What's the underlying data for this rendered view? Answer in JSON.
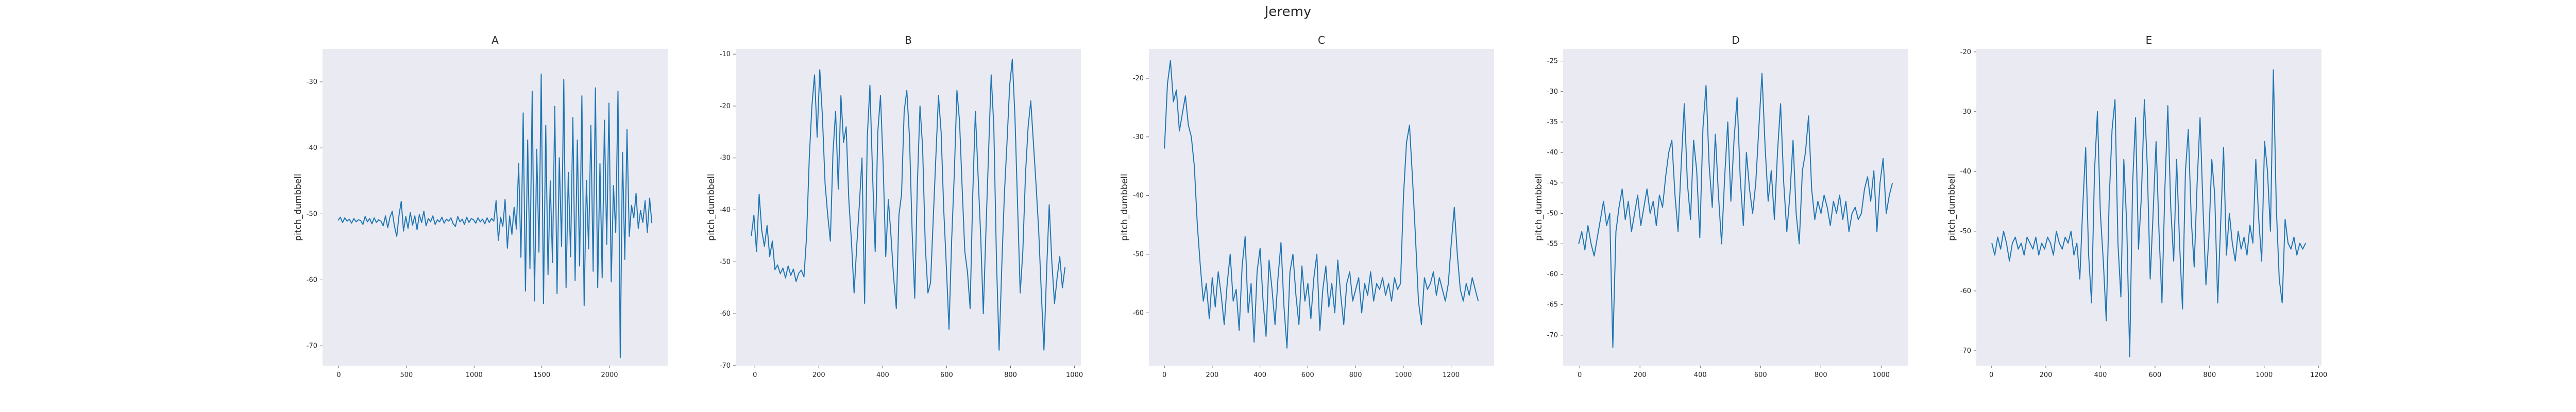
{
  "figure": {
    "title": "Jeremy"
  },
  "style": {
    "line_color": "#1f77b4",
    "axes_background": "#eaeaf2",
    "text_color": "#262626"
  },
  "chart_data": [
    {
      "type": "line",
      "title": "A",
      "xlabel": "",
      "ylabel": "pitch_dumbbell",
      "xlim": [
        -120,
        2430
      ],
      "ylim": [
        -73,
        -25
      ],
      "xticks": [
        0,
        500,
        1000,
        1500,
        2000
      ],
      "yticks": [
        -30,
        -40,
        -50,
        -60,
        -70
      ],
      "grid": false,
      "series": [
        {
          "values": [
            -51,
            -50.5,
            -51.3,
            -50.6,
            -51.1,
            -50.8,
            -51.4,
            -50.7,
            -51.2,
            -50.9,
            -51,
            -51.6,
            -50.4,
            -51.2,
            -50.7,
            -51.5,
            -50.6,
            -51.3,
            -50.9,
            -51.1,
            -51.8,
            -50.3,
            -52.1,
            -50.5,
            -49.6,
            -51.9,
            -53.4,
            -50.2,
            -48.1,
            -52.6,
            -50.4,
            -52.2,
            -49.8,
            -51.7,
            -50.3,
            -52.4,
            -50.1,
            -51.3,
            -49.6,
            -51.8,
            -50.7,
            -51.2,
            -50.3,
            -51.6,
            -50.9,
            -51.2,
            -50.5,
            -51.4,
            -50.8,
            -51.1,
            -50.6,
            -51.5,
            -51.9,
            -50.4,
            -51.2,
            -50.8,
            -51.6,
            -50.5,
            -51.3,
            -50.7,
            -50.9,
            -51.4,
            -50.6,
            -51.2,
            -50.8,
            -51.5,
            -50.6,
            -51.3,
            -50.7,
            -51.1,
            -48,
            -54,
            -50.5,
            -51.9,
            -47.8,
            -55.2,
            -50.3,
            -53.1,
            -49,
            -52.3,
            -42.4,
            -56.6,
            -34.7,
            -61.7,
            -38.8,
            -58.3,
            -31.4,
            -63.2,
            -40.2,
            -55.8,
            -28.8,
            -63.6,
            -36.6,
            -59.2,
            -45,
            -57.4,
            -33.7,
            -62.1,
            -41.5,
            -54.9,
            -29.6,
            -61.2,
            -43.7,
            -56.5,
            -35.4,
            -60.1,
            -38.8,
            -57.9,
            -32.1,
            -63.9,
            -44.9,
            -55.3,
            -36.6,
            -58.7,
            -30.9,
            -61.2,
            -42.4,
            -59.7,
            -35.8,
            -54.6,
            -33.2,
            -60.3,
            -45.7,
            -52.8,
            -31.4,
            -71.8,
            -40.7,
            -56.9,
            -37.2,
            -53.4,
            -48.7,
            -50.6,
            -46.9,
            -52.2,
            -49.5,
            -51.3,
            -48,
            -52.8,
            -47.6,
            -51.4
          ]
        }
      ]
    },
    {
      "type": "line",
      "title": "B",
      "xlabel": "",
      "ylabel": "pitch_dumbbell",
      "xlim": [
        -60,
        1020
      ],
      "ylim": [
        -70,
        -9
      ],
      "xticks": [
        0,
        200,
        400,
        600,
        800,
        1000
      ],
      "yticks": [
        -10,
        -20,
        -30,
        -40,
        -50,
        -60,
        -70
      ],
      "grid": false,
      "series": [
        {
          "values": [
            -45,
            -41,
            -48,
            -37,
            -44,
            -47,
            -43,
            -49,
            -46,
            -51.5,
            -50.6,
            -52.3,
            -51.2,
            -53.1,
            -50.8,
            -52.6,
            -51.4,
            -53.8,
            -52.2,
            -51.6,
            -52.9,
            -45,
            -30,
            -20,
            -14,
            -26,
            -13,
            -22,
            -35,
            -41,
            -46,
            -29,
            -21,
            -36,
            -18,
            -27,
            -24,
            -38,
            -46,
            -56,
            -47,
            -39,
            -30,
            -58,
            -26,
            -16,
            -33,
            -48,
            -25,
            -18,
            -31,
            -49,
            -38,
            -45,
            -53,
            -59,
            -41,
            -37,
            -21,
            -17,
            -26,
            -44,
            -57,
            -35,
            -20,
            -28,
            -47,
            -56,
            -54,
            -42,
            -30,
            -18,
            -25,
            -40,
            -51,
            -63,
            -46,
            -33,
            -17,
            -23,
            -36,
            -48,
            -52,
            -59,
            -37,
            -21,
            -33,
            -45,
            -60,
            -44,
            -29,
            -14,
            -24,
            -50,
            -67,
            -51,
            -37,
            -27,
            -16,
            -11,
            -22,
            -39,
            -56,
            -48,
            -33,
            -24,
            -19,
            -27,
            -35,
            -44,
            -56,
            -67,
            -52,
            -39,
            -50,
            -58,
            -53,
            -49,
            -55,
            -51
          ]
        }
      ]
    },
    {
      "type": "line",
      "title": "C",
      "xlabel": "",
      "ylabel": "pitch_dumbbell",
      "xlim": [
        -65,
        1380
      ],
      "ylim": [
        -69,
        -15
      ],
      "xticks": [
        0,
        200,
        400,
        600,
        800,
        1000,
        1200
      ],
      "yticks": [
        -20,
        -30,
        -40,
        -50,
        -60
      ],
      "grid": false,
      "series": [
        {
          "values": [
            -32,
            -21,
            -17,
            -24,
            -22,
            -29,
            -26,
            -23,
            -28,
            -30,
            -35,
            -45,
            -52,
            -58,
            -55,
            -61,
            -54,
            -59,
            -53,
            -57,
            -62,
            -55,
            -50,
            -58,
            -56,
            -63,
            -52,
            -47,
            -60,
            -55,
            -65,
            -53,
            -49,
            -58,
            -64,
            -51,
            -56,
            -62,
            -54,
            -48,
            -59,
            -66,
            -53,
            -50,
            -57,
            -62,
            -52,
            -58,
            -55,
            -61,
            -54,
            -50,
            -63,
            -56,
            -52,
            -59,
            -55,
            -60,
            -51,
            -57,
            -62,
            -55,
            -53,
            -58,
            -56,
            -54,
            -60,
            -55,
            -57,
            -53,
            -58,
            -55,
            -56,
            -54,
            -57,
            -55,
            -58,
            -54,
            -56,
            -55,
            -40,
            -31,
            -28,
            -37,
            -47,
            -58,
            -62,
            -54,
            -56,
            -55,
            -53,
            -57,
            -54,
            -56,
            -58,
            -55,
            -48,
            -42,
            -50,
            -56,
            -58,
            -55,
            -57,
            -54,
            -56,
            -58
          ]
        }
      ]
    },
    {
      "type": "line",
      "title": "D",
      "xlabel": "",
      "ylabel": "pitch_dumbbell",
      "xlim": [
        -55,
        1090
      ],
      "ylim": [
        -75,
        -23
      ],
      "xticks": [
        0,
        200,
        400,
        600,
        800,
        1000
      ],
      "yticks": [
        -25,
        -30,
        -35,
        -40,
        -45,
        -50,
        -55,
        -60,
        -65,
        -70
      ],
      "grid": false,
      "series": [
        {
          "values": [
            -55,
            -53,
            -56,
            -52,
            -55,
            -57,
            -54,
            -51,
            -48,
            -52,
            -50,
            -72,
            -53,
            -49,
            -46,
            -51,
            -48,
            -53,
            -50,
            -47,
            -52,
            -49,
            -46,
            -50,
            -48,
            -52,
            -47,
            -49,
            -44,
            -40,
            -38,
            -47,
            -53,
            -42,
            -32,
            -45,
            -51,
            -38,
            -43,
            -54,
            -36,
            -29,
            -42,
            -49,
            -37,
            -47,
            -55,
            -44,
            -35,
            -48,
            -38,
            -31,
            -44,
            -52,
            -40,
            -46,
            -50,
            -45,
            -36,
            -27,
            -39,
            -48,
            -43,
            -51,
            -40,
            -32,
            -45,
            -53,
            -47,
            -38,
            -50,
            -55,
            -43,
            -40,
            -34,
            -46,
            -51,
            -48,
            -50,
            -47,
            -49,
            -52,
            -48,
            -50,
            -47,
            -51,
            -48,
            -53,
            -50,
            -49,
            -51,
            -50,
            -46,
            -44,
            -48,
            -43,
            -53,
            -45,
            -41,
            -50,
            -47,
            -45
          ]
        }
      ]
    },
    {
      "type": "line",
      "title": "E",
      "xlabel": "",
      "ylabel": "pitch_dumbbell",
      "xlim": [
        -55,
        1210
      ],
      "ylim": [
        -72.5,
        -19.5
      ],
      "xticks": [
        0,
        200,
        400,
        600,
        800,
        1000,
        1200
      ],
      "yticks": [
        -20,
        -30,
        -40,
        -50,
        -60,
        -70
      ],
      "grid": false,
      "series": [
        {
          "values": [
            -52,
            -54,
            -51,
            -53,
            -50,
            -52,
            -55,
            -52,
            -51,
            -53,
            -52,
            -54,
            -51,
            -52,
            -53,
            -51,
            -54,
            -52,
            -53,
            -51,
            -52,
            -54,
            -50,
            -52,
            -53,
            -51,
            -52,
            -50,
            -54,
            -52,
            -58,
            -46,
            -36,
            -54,
            -62,
            -40,
            -30,
            -47,
            -55,
            -65,
            -45,
            -33,
            -28,
            -52,
            -61,
            -38,
            -49,
            -71,
            -42,
            -31,
            -53,
            -44,
            -28,
            -39,
            -58,
            -47,
            -35,
            -50,
            -62,
            -43,
            -29,
            -46,
            -55,
            -38,
            -52,
            -63,
            -40,
            -33,
            -48,
            -56,
            -42,
            -31,
            -46,
            -59,
            -51,
            -38,
            -44,
            -62,
            -49,
            -36,
            -54,
            -47,
            -52,
            -55,
            -50,
            -53,
            -51,
            -54,
            -49,
            -52,
            -38,
            -48,
            -55,
            -35,
            -40,
            -50,
            -23,
            -46,
            -58,
            -62,
            -48,
            -52,
            -53,
            -51,
            -54,
            -52,
            -53,
            -52
          ]
        }
      ]
    }
  ]
}
